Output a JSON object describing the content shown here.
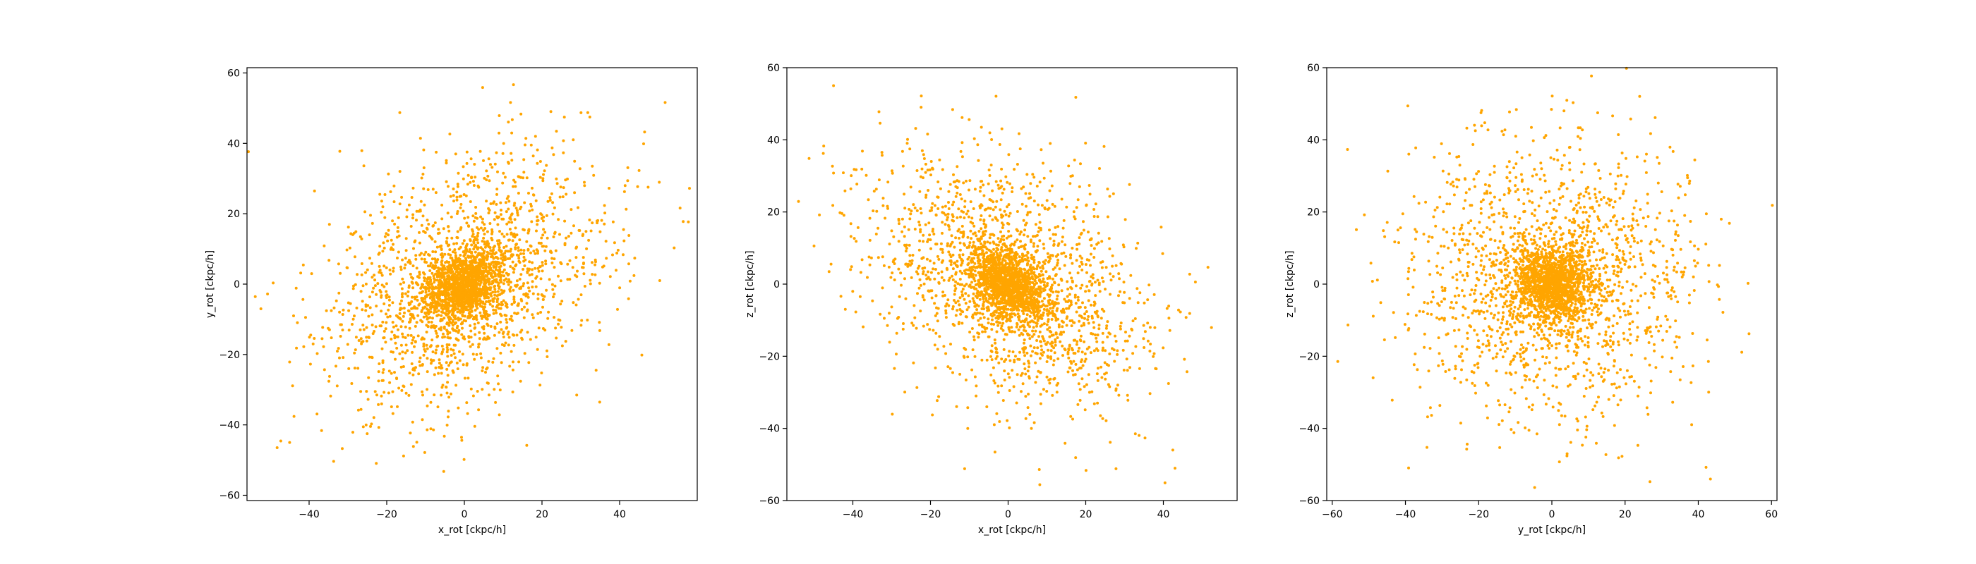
{
  "chart_data": [
    {
      "type": "scatter",
      "xlabel": "x_rot [ckpc/h]",
      "ylabel": "y_rot [ckpc/h]",
      "xlim": [
        -56,
        60
      ],
      "ylim": [
        -61.5,
        61.5
      ],
      "xticks": [
        -40,
        -20,
        0,
        20,
        40
      ],
      "yticks": [
        -60,
        -40,
        -20,
        0,
        20,
        40,
        60
      ],
      "marker_color": "#ffa500",
      "marker_size": 2,
      "points": [],
      "distribution": {
        "n_points": 3000,
        "core_sigma": [
          5,
          5
        ],
        "halo_sigma": [
          18,
          18
        ],
        "correlation": 0.35,
        "core_fraction": 0.45,
        "seed": 11
      }
    },
    {
      "type": "scatter",
      "xlabel": "x_rot [ckpc/h]",
      "ylabel": "z_rot [ckpc/h]",
      "xlim": [
        -57,
        59
      ],
      "ylim": [
        -60,
        60
      ],
      "xticks": [
        -40,
        -20,
        0,
        20,
        40
      ],
      "yticks": [
        -60,
        -40,
        -20,
        0,
        20,
        40,
        60
      ],
      "marker_color": "#ffa500",
      "marker_size": 2,
      "points": [],
      "distribution": {
        "n_points": 3000,
        "core_sigma": [
          5,
          5
        ],
        "halo_sigma": [
          18,
          18
        ],
        "correlation": -0.4,
        "core_fraction": 0.45,
        "seed": 23
      }
    },
    {
      "type": "scatter",
      "xlabel": "y_rot [ckpc/h]",
      "ylabel": "z_rot [ckpc/h]",
      "xlim": [
        -61.5,
        61.5
      ],
      "ylim": [
        -60,
        60
      ],
      "xticks": [
        -60,
        -40,
        -20,
        0,
        20,
        40,
        60
      ],
      "yticks": [
        -60,
        -40,
        -20,
        0,
        20,
        40,
        60
      ],
      "marker_color": "#ffa500",
      "marker_size": 2,
      "points": [],
      "distribution": {
        "n_points": 3000,
        "core_sigma": [
          5,
          5
        ],
        "halo_sigma": [
          19,
          19
        ],
        "correlation": 0.0,
        "core_fraction": 0.45,
        "seed": 37
      }
    }
  ]
}
